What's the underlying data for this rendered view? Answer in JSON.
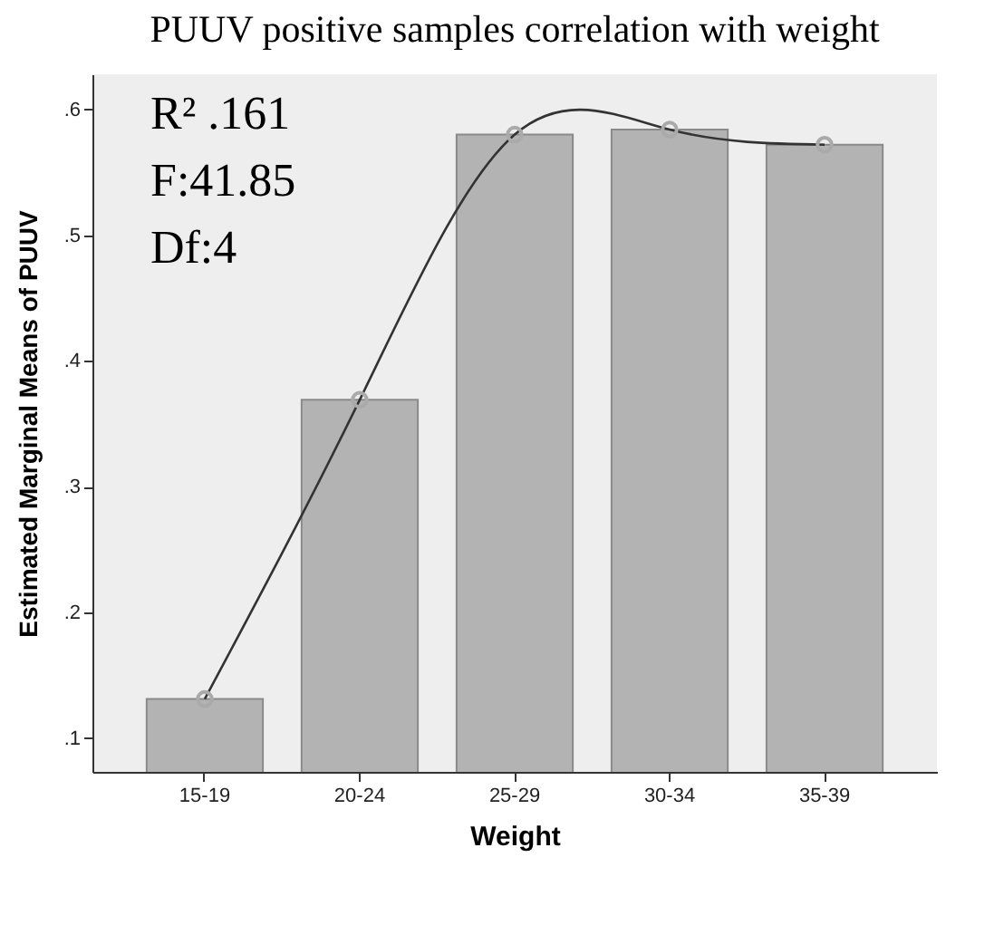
{
  "chart_data": {
    "type": "bar",
    "title": "PUUV positive samples correlation with weight",
    "xlabel": "Weight",
    "ylabel": "Estimated Marginal Means of PUUV",
    "categories": [
      "15-19",
      "20-24",
      "25-29",
      "30-34",
      "35-39"
    ],
    "series": [
      {
        "color": "#b3b3b3",
        "values": [
          0.131,
          0.369,
          0.58,
          0.584,
          0.572
        ]
      },
      {
        "type": "line",
        "color": "#333333",
        "values": [
          0.131,
          0.369,
          0.58,
          0.584,
          0.572
        ]
      }
    ],
    "ylim": [
      0.073,
      0.628
    ],
    "yticks": [
      {
        "value": 0.1,
        "label": ".1"
      },
      {
        "value": 0.2,
        "label": ".2"
      },
      {
        "value": 0.3,
        "label": ".3"
      },
      {
        "value": 0.4,
        "label": ".4"
      },
      {
        "value": 0.5,
        "label": ".5"
      },
      {
        "value": 0.6,
        "label": ".6"
      }
    ],
    "marker": "circle",
    "grid": false,
    "annotations": [
      "R² .161",
      "F:41.85",
      "Df:4"
    ]
  }
}
